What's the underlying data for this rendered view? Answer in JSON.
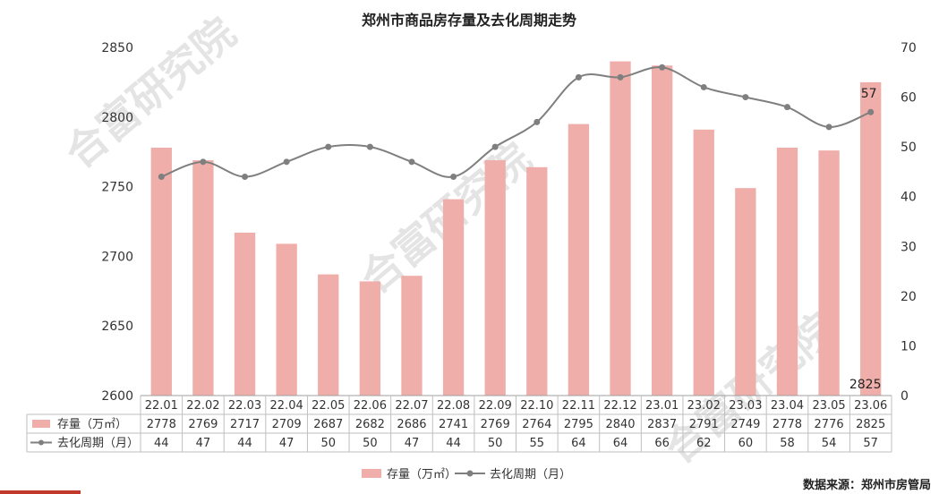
{
  "chart_data": {
    "type": "bar+line",
    "title": "郑州市商品房存量及去化周期走势",
    "categories": [
      "22.01",
      "22.02",
      "22.03",
      "22.04",
      "22.05",
      "22.06",
      "22.07",
      "22.08",
      "22.09",
      "22.10",
      "22.11",
      "22.12",
      "23.01",
      "23.02",
      "23.03",
      "23.04",
      "23.05",
      "23.06"
    ],
    "series": [
      {
        "name": "存量（万㎡）",
        "type": "bar",
        "axis": "left",
        "color": "#efaeaa",
        "values": [
          2778,
          2769,
          2717,
          2709,
          2687,
          2682,
          2686,
          2741,
          2769,
          2764,
          2795,
          2840,
          2837,
          2791,
          2749,
          2778,
          2776,
          2825
        ]
      },
      {
        "name": "去化周期（月）",
        "type": "line",
        "axis": "right",
        "color": "#7f7f7f",
        "values": [
          44,
          47,
          44,
          47,
          50,
          50,
          47,
          44,
          50,
          55,
          64,
          64,
          66,
          62,
          60,
          58,
          54,
          57
        ]
      }
    ],
    "y_left": {
      "min": 2600,
      "max": 2850,
      "ticks": [
        2600,
        2650,
        2700,
        2750,
        2800,
        2850
      ]
    },
    "y_right": {
      "min": 0,
      "max": 70,
      "ticks": [
        0,
        10,
        20,
        30,
        40,
        50,
        60,
        70
      ]
    },
    "data_labels": {
      "bar_last": "2825",
      "line_last": "57"
    },
    "legend": {
      "position": "bottom"
    },
    "grid": false,
    "table_rows": [
      {
        "label": "存量（万㎡）",
        "series_index": 0
      },
      {
        "label": "去化周期（月）",
        "series_index": 1
      }
    ],
    "source": "数据来源：郑州市房管局",
    "watermark": "合富研究院"
  }
}
